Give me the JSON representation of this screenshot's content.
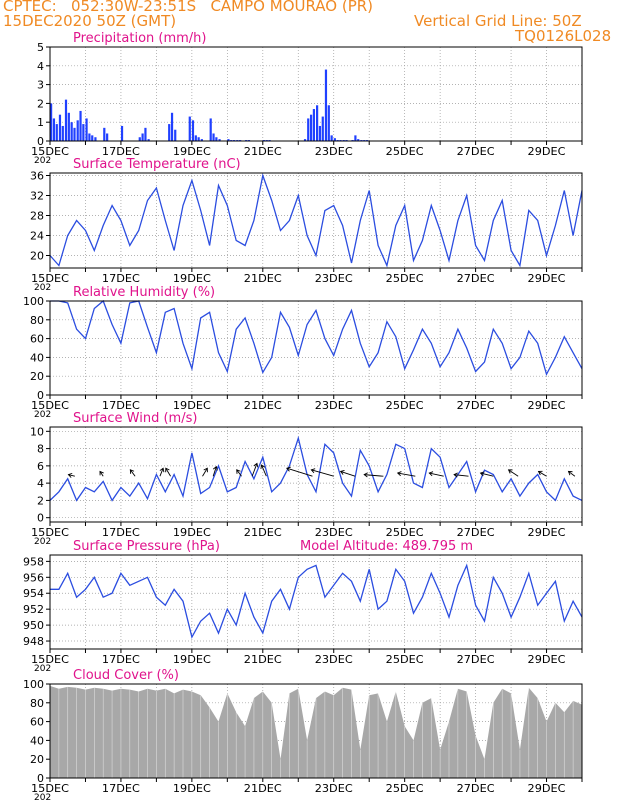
{
  "header": {
    "left_line1": "CPTEC:   052:30W-23:51S   CAMPO MOURAO (PR)",
    "left_line2": "15DEC2020 50Z (GMT)",
    "right_line1": "Vertical Grid Line: 50Z",
    "right_line2": "TQ0126L028"
  },
  "colors": {
    "header": "#f08a24",
    "title": "#e0138c",
    "line": "#2b4de0",
    "bar": "#2040ff",
    "cloud": "#a8a8a8",
    "wind": "#000000"
  },
  "x_axis": {
    "tick_labels": [
      "15DEC",
      "17DEC",
      "19DEC",
      "21DEC",
      "23DEC",
      "25DEC",
      "27DEC",
      "29DEC"
    ],
    "under_label": "202"
  },
  "chart_data": [
    {
      "id": "precip",
      "type": "bar",
      "title": "Precipitation (mm/h)",
      "ylim": [
        0,
        5
      ],
      "yticks": [
        0,
        1,
        2,
        3,
        4,
        5
      ],
      "xlim": [
        15,
        30
      ],
      "x": [
        15.0,
        15.08,
        15.16,
        15.25,
        15.33,
        15.42,
        15.5,
        15.58,
        15.66,
        15.75,
        15.83,
        15.91,
        16.0,
        16.08,
        16.16,
        16.25,
        16.5,
        16.58,
        17.0,
        17.5,
        17.58,
        17.66,
        17.75,
        18.33,
        18.41,
        18.5,
        18.91,
        19.0,
        19.08,
        19.16,
        19.25,
        19.5,
        19.58,
        19.66,
        19.75,
        20.0,
        20.08,
        20.16,
        20.25,
        20.33,
        20.5,
        20.58,
        21.0,
        21.08,
        21.16,
        22.16,
        22.25,
        22.33,
        22.41,
        22.5,
        22.58,
        22.66,
        22.75,
        22.83,
        22.91,
        23.0,
        23.08,
        23.16,
        23.25,
        23.33,
        23.5,
        23.58,
        23.66,
        23.75,
        23.83,
        23.91
      ],
      "values": [
        2.0,
        1.2,
        0.9,
        1.4,
        0.8,
        2.2,
        1.5,
        1.0,
        0.7,
        1.1,
        1.6,
        0.9,
        1.2,
        0.4,
        0.3,
        0.2,
        0.7,
        0.4,
        0.8,
        0.2,
        0.4,
        0.7,
        0.1,
        0.9,
        1.5,
        0.6,
        1.3,
        1.1,
        0.3,
        0.2,
        0.1,
        1.2,
        0.4,
        0.2,
        0.1,
        0.1,
        0.05,
        0.05,
        0.05,
        0.05,
        0.05,
        0.05,
        0.05,
        0.05,
        0.05,
        0.1,
        1.2,
        1.4,
        1.7,
        1.9,
        0.8,
        1.3,
        3.8,
        1.9,
        0.3,
        0.15,
        0.05,
        0.05,
        0.05,
        0.05,
        0.05,
        0.3,
        0.1,
        0.05,
        0.05,
        0.05
      ]
    },
    {
      "id": "temp",
      "type": "line",
      "title": "Surface Temperature (nC)",
      "ylim": [
        17.5,
        36.5
      ],
      "yticks": [
        20,
        24,
        28,
        32,
        36
      ],
      "xlim": [
        15,
        30
      ],
      "x": [
        15.0,
        15.25,
        15.5,
        15.75,
        16.0,
        16.25,
        16.5,
        16.75,
        17.0,
        17.25,
        17.5,
        17.75,
        18.0,
        18.25,
        18.5,
        18.75,
        19.0,
        19.25,
        19.5,
        19.75,
        20.0,
        20.25,
        20.5,
        20.75,
        21.0,
        21.25,
        21.5,
        21.75,
        22.0,
        22.25,
        22.5,
        22.75,
        23.0,
        23.25,
        23.5,
        23.75,
        24.0,
        24.25,
        24.5,
        24.75,
        25.0,
        25.25,
        25.5,
        25.75,
        26.0,
        26.25,
        26.5,
        26.75,
        27.0,
        27.25,
        27.5,
        27.75,
        28.0,
        28.25,
        28.5,
        28.75,
        29.0,
        29.25,
        29.5,
        29.75,
        30.0
      ],
      "values": [
        20.0,
        18.0,
        24.0,
        27.0,
        25.0,
        21.0,
        26.0,
        30.0,
        27.0,
        22.0,
        25.0,
        31.0,
        33.5,
        27.0,
        21.0,
        30.0,
        35.0,
        29.0,
        22.0,
        34.0,
        30.0,
        23.0,
        22.0,
        27.0,
        36.0,
        31.0,
        25.0,
        27.0,
        32.0,
        24.0,
        20.0,
        29.0,
        30.0,
        26.0,
        18.5,
        27.0,
        33.0,
        22.0,
        18.0,
        26.0,
        30.0,
        19.0,
        23.0,
        30.0,
        25.0,
        19.0,
        27.0,
        32.0,
        22.0,
        19.0,
        27.0,
        31.0,
        21.0,
        18.0,
        29.0,
        27.0,
        20.0,
        26.0,
        33.0,
        24.0,
        33.0
      ]
    },
    {
      "id": "rh",
      "type": "line",
      "title": "Relative Humidity (%)",
      "ylim": [
        0,
        100
      ],
      "yticks": [
        0,
        20,
        40,
        60,
        80,
        100
      ],
      "xlim": [
        15,
        30
      ],
      "x": [
        15.0,
        15.25,
        15.5,
        15.75,
        16.0,
        16.25,
        16.5,
        16.75,
        17.0,
        17.25,
        17.5,
        17.75,
        18.0,
        18.25,
        18.5,
        18.75,
        19.0,
        19.25,
        19.5,
        19.75,
        20.0,
        20.25,
        20.5,
        20.75,
        21.0,
        21.25,
        21.5,
        21.75,
        22.0,
        22.25,
        22.5,
        22.75,
        23.0,
        23.25,
        23.5,
        23.75,
        24.0,
        24.25,
        24.5,
        24.75,
        25.0,
        25.25,
        25.5,
        25.75,
        26.0,
        26.25,
        26.5,
        26.75,
        27.0,
        27.25,
        27.5,
        27.75,
        28.0,
        28.25,
        28.5,
        28.75,
        29.0,
        29.25,
        29.5,
        29.75,
        30.0
      ],
      "values": [
        100,
        100,
        98,
        70,
        60,
        92,
        100,
        75,
        55,
        98,
        100,
        72,
        45,
        88,
        92,
        55,
        28,
        82,
        88,
        45,
        25,
        70,
        82,
        55,
        24,
        40,
        88,
        72,
        42,
        75,
        90,
        60,
        42,
        70,
        90,
        55,
        30,
        45,
        78,
        62,
        28,
        48,
        70,
        55,
        30,
        45,
        70,
        50,
        25,
        35,
        70,
        55,
        28,
        40,
        68,
        55,
        22,
        40,
        62,
        45,
        28
      ]
    },
    {
      "id": "wind",
      "type": "line",
      "title": "Surface Wind (m/s)",
      "ylim": [
        -0.5,
        10.5
      ],
      "yticks": [
        0,
        2,
        4,
        6,
        8,
        10
      ],
      "xlim": [
        15,
        30
      ],
      "x": [
        15.0,
        15.25,
        15.5,
        15.75,
        16.0,
        16.25,
        16.5,
        16.75,
        17.0,
        17.25,
        17.5,
        17.75,
        18.0,
        18.25,
        18.5,
        18.75,
        19.0,
        19.25,
        19.5,
        19.75,
        20.0,
        20.25,
        20.5,
        20.75,
        21.0,
        21.25,
        21.5,
        21.75,
        22.0,
        22.25,
        22.5,
        22.75,
        23.0,
        23.25,
        23.5,
        23.75,
        24.0,
        24.25,
        24.5,
        24.75,
        25.0,
        25.25,
        25.5,
        25.75,
        26.0,
        26.25,
        26.5,
        26.75,
        27.0,
        27.25,
        27.5,
        27.75,
        28.0,
        28.25,
        28.5,
        28.75,
        29.0,
        29.25,
        29.5,
        29.75,
        30.0
      ],
      "values": [
        2.0,
        3.0,
        4.5,
        2.0,
        3.5,
        3.0,
        4.2,
        2.0,
        3.5,
        2.5,
        4.0,
        2.2,
        5.0,
        3.0,
        5.0,
        2.5,
        7.5,
        2.8,
        3.5,
        6.0,
        3.0,
        3.5,
        6.5,
        4.5,
        7.0,
        3.0,
        4.0,
        6.0,
        9.2,
        5.0,
        3.0,
        8.5,
        7.5,
        4.0,
        2.5,
        7.8,
        6.0,
        3.0,
        5.0,
        8.5,
        8.0,
        4.0,
        3.5,
        8.0,
        7.0,
        3.5,
        5.0,
        6.5,
        3.0,
        5.5,
        5.0,
        3.0,
        4.5,
        2.5,
        4.0,
        5.0,
        3.0,
        2.0,
        4.5,
        2.5,
        2.0
      ],
      "vectors": [
        {
          "x": 15.7,
          "dx": -0.4,
          "dy": 0.1
        },
        {
          "x": 16.5,
          "dx": -0.2,
          "dy": 0.3
        },
        {
          "x": 17.4,
          "dx": -0.3,
          "dy": 0.4
        },
        {
          "x": 18.1,
          "dx": 0.2,
          "dy": 0.5
        },
        {
          "x": 18.4,
          "dx": -0.3,
          "dy": 0.5
        },
        {
          "x": 19.3,
          "dx": 0.3,
          "dy": 0.5
        },
        {
          "x": 19.6,
          "dx": 0.2,
          "dy": 0.6
        },
        {
          "x": 20.4,
          "dx": -0.3,
          "dy": 0.4
        },
        {
          "x": 20.7,
          "dx": 0.3,
          "dy": 0.8
        },
        {
          "x": 21.1,
          "dx": -0.3,
          "dy": 0.7
        },
        {
          "x": 22.4,
          "dx": -1.6,
          "dy": 0.5
        },
        {
          "x": 23.0,
          "dx": -1.4,
          "dy": 0.4
        },
        {
          "x": 23.6,
          "dx": -0.9,
          "dy": 0.3
        },
        {
          "x": 24.4,
          "dx": -1.2,
          "dy": 0.1
        },
        {
          "x": 25.3,
          "dx": -1.1,
          "dy": 0.2
        },
        {
          "x": 26.1,
          "dx": -0.9,
          "dy": 0.2
        },
        {
          "x": 26.8,
          "dx": -0.9,
          "dy": 0.1
        },
        {
          "x": 27.5,
          "dx": -0.8,
          "dy": 0.2
        },
        {
          "x": 28.2,
          "dx": -0.6,
          "dy": 0.4
        },
        {
          "x": 29.0,
          "dx": -0.5,
          "dy": 0.3
        },
        {
          "x": 29.8,
          "dx": -0.4,
          "dy": 0.3
        }
      ]
    },
    {
      "id": "pressure",
      "type": "line",
      "title": "Surface Pressure (hPa)",
      "extra_label": "Model Altitude: 489.795 m",
      "ylim": [
        947,
        958.8
      ],
      "yticks": [
        948,
        950,
        952,
        954,
        956,
        958
      ],
      "xlim": [
        15,
        30
      ],
      "x": [
        15.0,
        15.25,
        15.5,
        15.75,
        16.0,
        16.25,
        16.5,
        16.75,
        17.0,
        17.25,
        17.5,
        17.75,
        18.0,
        18.25,
        18.5,
        18.75,
        19.0,
        19.25,
        19.5,
        19.75,
        20.0,
        20.25,
        20.5,
        20.75,
        21.0,
        21.25,
        21.5,
        21.75,
        22.0,
        22.25,
        22.5,
        22.75,
        23.0,
        23.25,
        23.5,
        23.75,
        24.0,
        24.25,
        24.5,
        24.75,
        25.0,
        25.25,
        25.5,
        25.75,
        26.0,
        26.25,
        26.5,
        26.75,
        27.0,
        27.25,
        27.5,
        27.75,
        28.0,
        28.25,
        28.5,
        28.75,
        29.0,
        29.25,
        29.5,
        29.75,
        30.0
      ],
      "values": [
        954.5,
        954.5,
        956.5,
        953.5,
        954.5,
        956.0,
        953.5,
        954.0,
        956.5,
        955.0,
        955.5,
        956.0,
        953.5,
        952.5,
        954.5,
        953.0,
        948.5,
        950.5,
        951.5,
        949.0,
        952.0,
        950.0,
        954.0,
        951.0,
        949.0,
        953.0,
        954.5,
        952.0,
        956.0,
        957.0,
        957.5,
        953.5,
        955.0,
        956.5,
        955.5,
        953.0,
        957.0,
        952.0,
        953.0,
        957.0,
        955.5,
        951.5,
        953.5,
        956.5,
        954.0,
        951.0,
        955.0,
        957.5,
        952.5,
        950.5,
        956.0,
        954.0,
        951.0,
        953.5,
        956.5,
        952.5,
        954.0,
        955.5,
        950.5,
        953.0,
        951.0
      ]
    },
    {
      "id": "cloud",
      "type": "area",
      "title": "Cloud Cover (%)",
      "ylim": [
        0,
        100
      ],
      "yticks": [
        0,
        20,
        40,
        60,
        80,
        100
      ],
      "xlim": [
        15,
        30
      ],
      "x": [
        15.0,
        15.25,
        15.5,
        15.75,
        16.0,
        16.25,
        16.5,
        16.75,
        17.0,
        17.25,
        17.5,
        17.75,
        18.0,
        18.25,
        18.5,
        18.75,
        19.0,
        19.25,
        19.5,
        19.75,
        20.0,
        20.25,
        20.5,
        20.75,
        21.0,
        21.25,
        21.5,
        21.75,
        22.0,
        22.25,
        22.5,
        22.75,
        23.0,
        23.25,
        23.5,
        23.75,
        24.0,
        24.25,
        24.5,
        24.75,
        25.0,
        25.25,
        25.5,
        25.75,
        26.0,
        26.25,
        26.5,
        26.75,
        27.0,
        27.25,
        27.5,
        27.75,
        28.0,
        28.25,
        28.5,
        28.75,
        29.0,
        29.25,
        29.5,
        29.75,
        30.0
      ],
      "values": [
        98,
        95,
        97,
        96,
        94,
        96,
        95,
        93,
        95,
        94,
        92,
        95,
        93,
        95,
        90,
        94,
        92,
        88,
        75,
        60,
        90,
        70,
        55,
        85,
        92,
        80,
        20,
        90,
        95,
        40,
        85,
        92,
        88,
        96,
        94,
        30,
        88,
        90,
        60,
        92,
        55,
        40,
        80,
        85,
        30,
        60,
        95,
        92,
        45,
        20,
        80,
        95,
        90,
        30,
        96,
        85,
        60,
        80,
        70,
        82,
        78
      ]
    }
  ]
}
